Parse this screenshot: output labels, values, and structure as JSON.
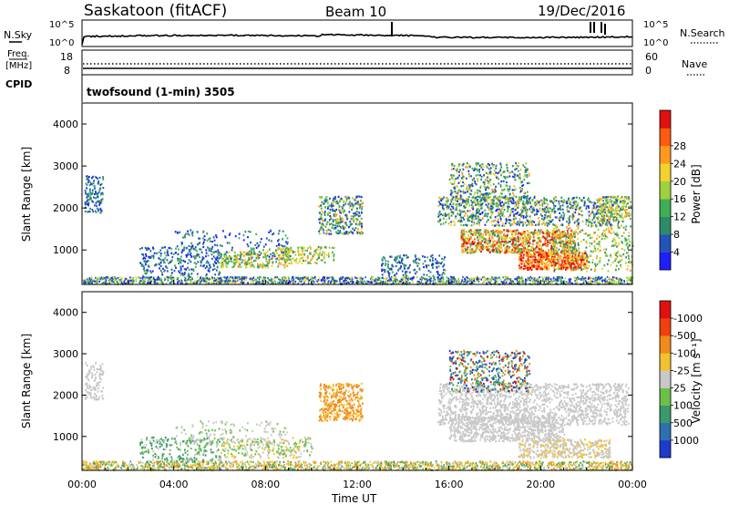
{
  "header": {
    "station": "Saskatoon (fitACF)",
    "beam": "Beam 10",
    "date": "19/Dec/2016"
  },
  "noise_panel": {
    "left_label": "N.Sky",
    "right_label": "N.Search",
    "left_ticks": [
      "10^5",
      "10^0"
    ],
    "right_ticks": [
      "10^5",
      "10^0"
    ]
  },
  "freq_panel": {
    "left_label_1": "Freq.",
    "left_label_2": "[MHz]",
    "right_label": "Nave",
    "left_ticks": [
      "18",
      "8"
    ],
    "right_ticks": [
      "60",
      "0"
    ]
  },
  "cpid_panel": {
    "label": "CPID",
    "program": "twofsound (1-min) 3505"
  },
  "chart_data": [
    {
      "type": "heatmap",
      "name": "power",
      "ylabel": "Slant Range [km]",
      "xlabel": "",
      "yticks": [
        1000,
        2000,
        3000,
        4000
      ],
      "ylim": [
        180,
        4500
      ],
      "xlim": [
        0,
        24
      ],
      "colorbar": {
        "label": "Power [dB]",
        "ticks": [
          "4",
          "8",
          "12",
          "16",
          "20",
          "24",
          "28"
        ],
        "colors": [
          "#1e1eff",
          "#2255b8",
          "#2e8b6a",
          "#3fae55",
          "#9fd040",
          "#f2d22e",
          "#ff9a1e",
          "#ff5a10",
          "#e01010"
        ]
      }
    },
    {
      "type": "heatmap",
      "name": "velocity",
      "ylabel": "Slant Range [km]",
      "xlabel": "Time UT",
      "yticks": [
        1000,
        2000,
        3000,
        4000
      ],
      "ylim": [
        180,
        4500
      ],
      "xlim": [
        0,
        24
      ],
      "xtick_labels": [
        "00:00",
        "04:00",
        "08:00",
        "12:00",
        "16:00",
        "20:00",
        "00:00"
      ],
      "colorbar": {
        "label": "Velocity [m s⁻¹]",
        "ticks": [
          "1000",
          "500",
          "100",
          "25",
          "-25",
          "-100",
          "-500",
          "-1000"
        ],
        "colors": [
          "#1e3ccc",
          "#2e70b0",
          "#3a9a6a",
          "#6cc04a",
          "#c8c8c8",
          "#f2c230",
          "#f08a1a",
          "#f04010",
          "#e01010"
        ]
      }
    }
  ]
}
